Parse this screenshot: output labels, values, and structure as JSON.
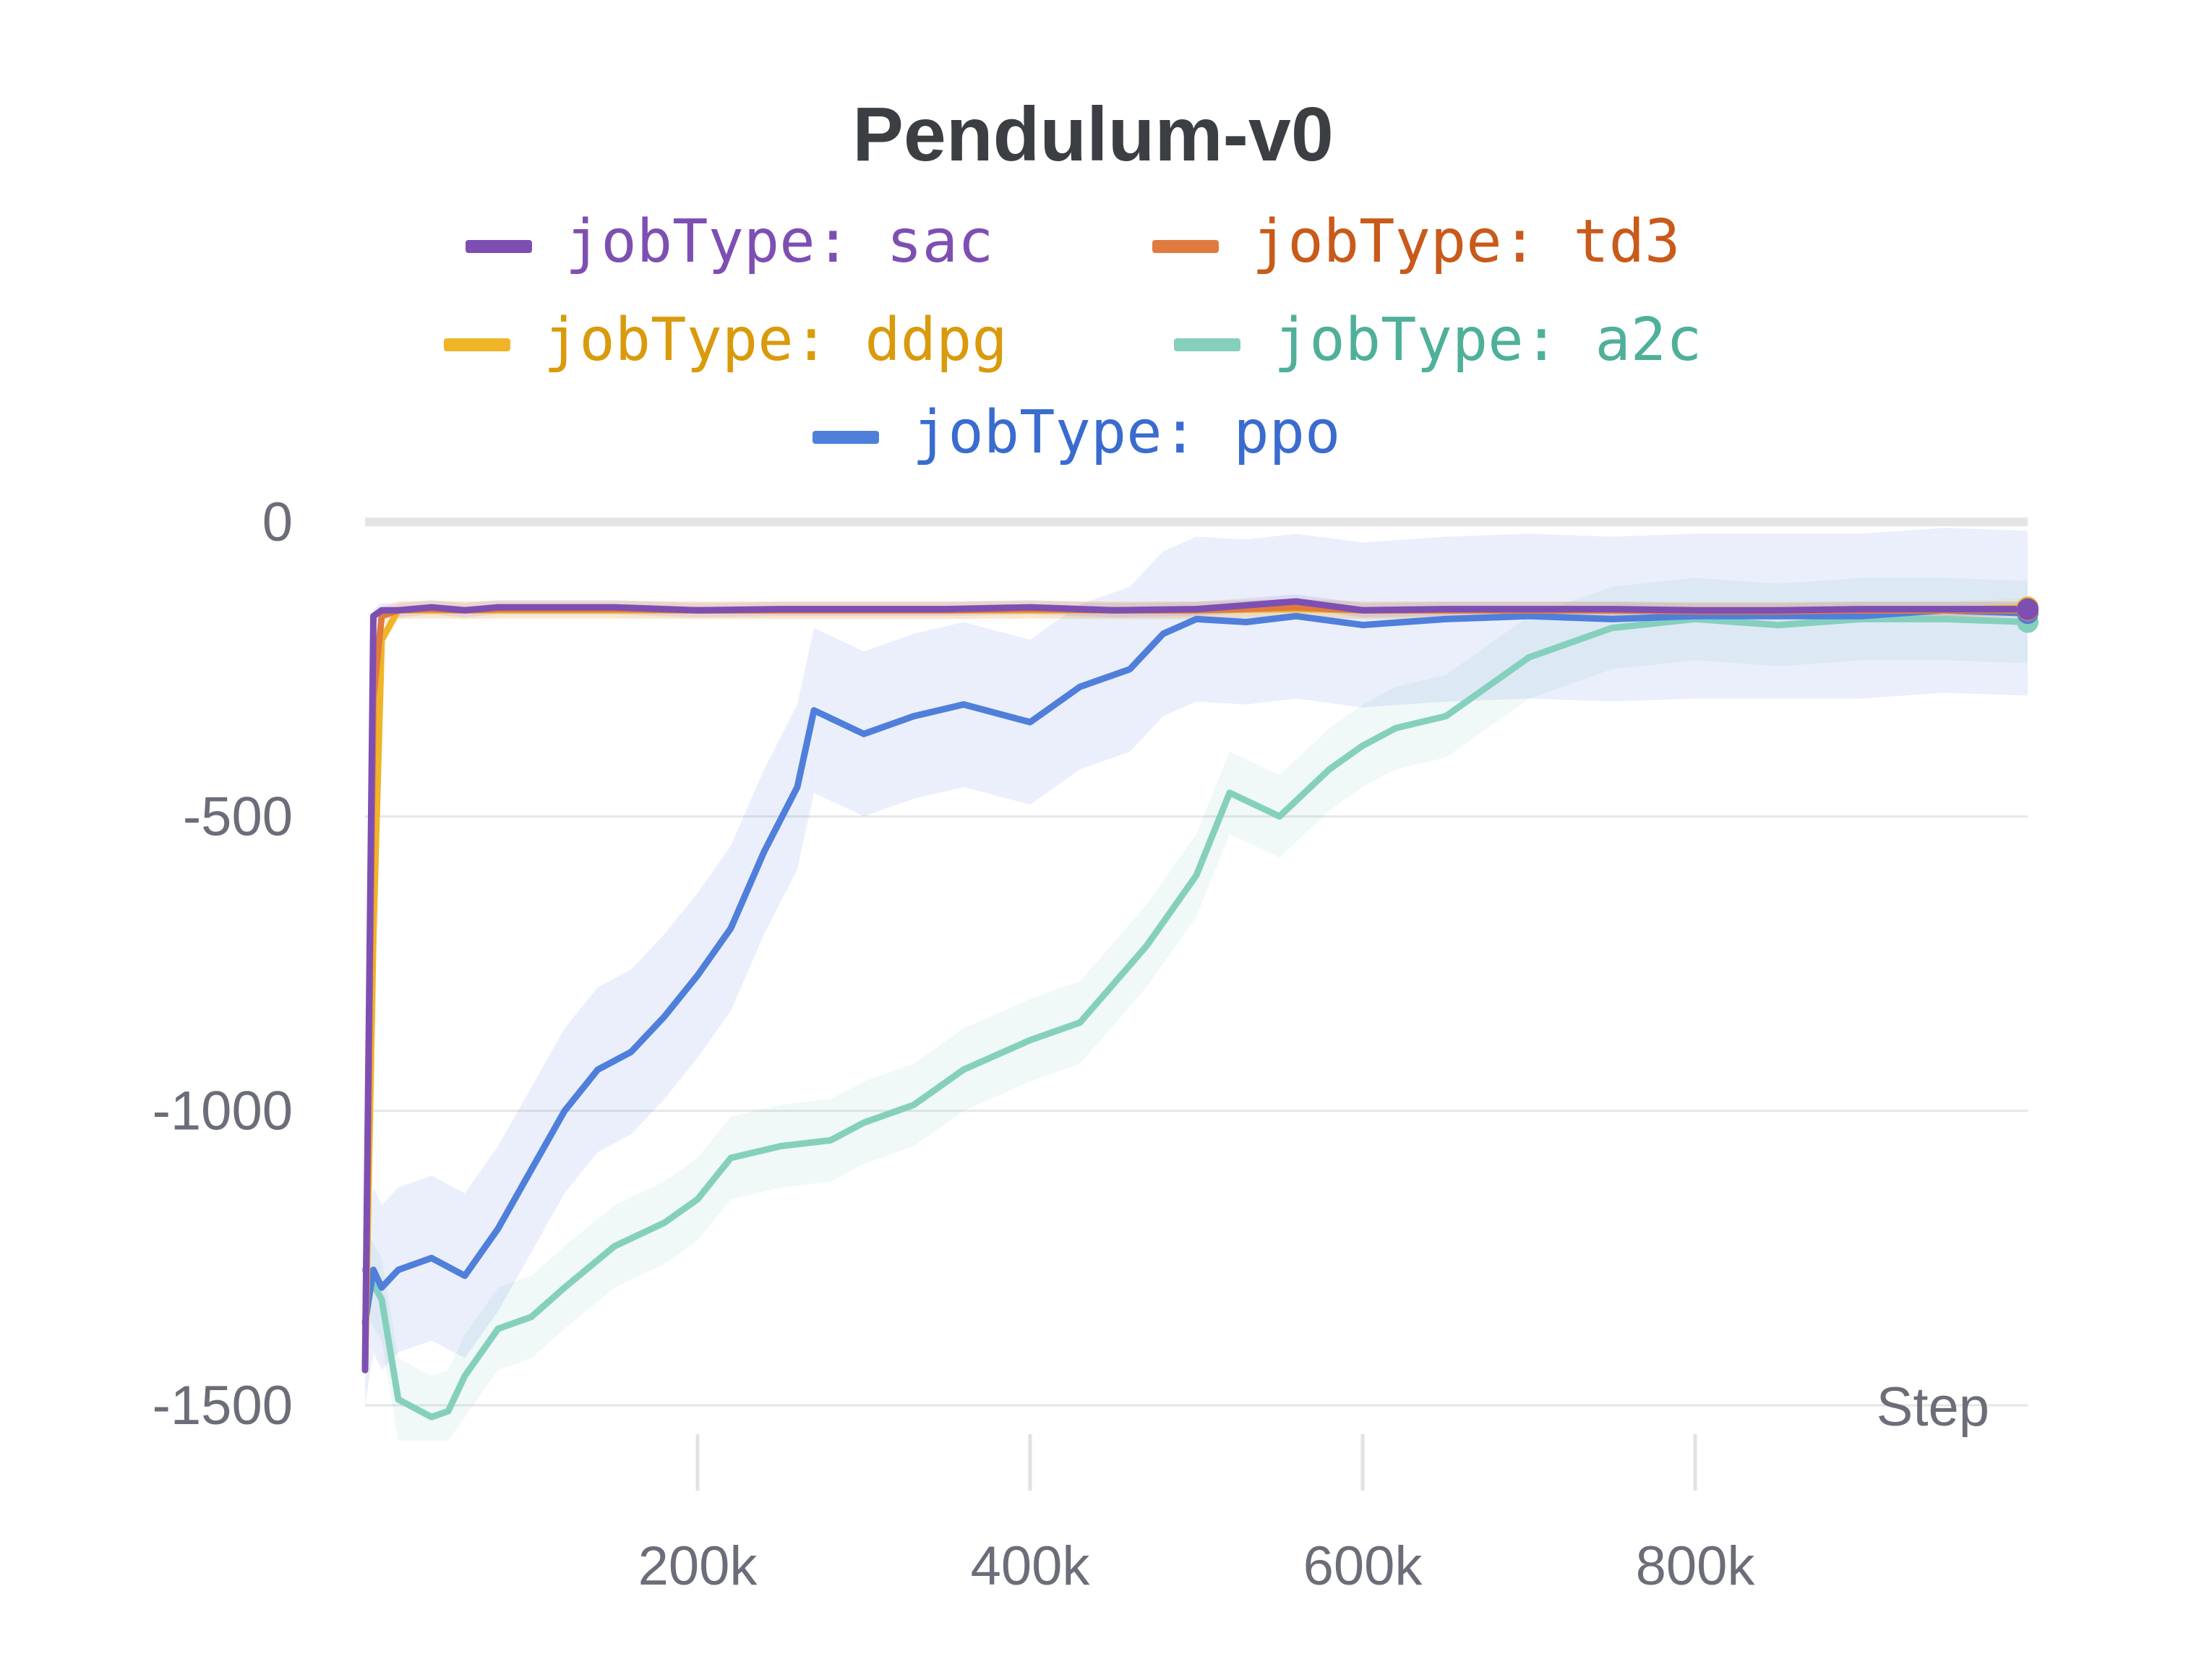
{
  "chart_data": {
    "type": "line",
    "title": "Pendulum-v0",
    "xlabel": "Step",
    "ylabel": "",
    "xlim": [
      0,
      1000000
    ],
    "ylim": [
      -1500,
      0
    ],
    "x_ticks": [
      {
        "value": 200000,
        "label": "200k"
      },
      {
        "value": 400000,
        "label": "400k"
      },
      {
        "value": 600000,
        "label": "600k"
      },
      {
        "value": 800000,
        "label": "800k"
      }
    ],
    "y_ticks": [
      {
        "value": 0,
        "label": "0"
      },
      {
        "value": -500,
        "label": "-500"
      },
      {
        "value": -1000,
        "label": "-1000"
      },
      {
        "value": -1500,
        "label": "-1500"
      }
    ],
    "grid": "horizontal",
    "legend_position": "top",
    "series": [
      {
        "name": "jobType: sac",
        "color": "#7e4fb3",
        "text_color": "#7e4fb3",
        "band": 12,
        "x": [
          0,
          5000,
          10000,
          20000,
          40000,
          60000,
          80000,
          100000,
          150000,
          200000,
          250000,
          300000,
          350000,
          400000,
          450000,
          500000,
          560000,
          600000,
          650000,
          700000,
          750000,
          800000,
          850000,
          900000,
          950000,
          1000000
        ],
        "y": [
          -1440,
          -160,
          -150,
          -150,
          -145,
          -150,
          -145,
          -145,
          -145,
          -150,
          -148,
          -148,
          -148,
          -145,
          -150,
          -148,
          -135,
          -150,
          -148,
          -148,
          -148,
          -150,
          -150,
          -148,
          -148,
          -148
        ]
      },
      {
        "name": "jobType: td3",
        "color": "#e07b3e",
        "text_color": "#c85a1a",
        "band": 15,
        "x": [
          0,
          5000,
          10000,
          20000,
          40000,
          60000,
          80000,
          100000,
          150000,
          200000,
          250000,
          300000,
          350000,
          400000,
          450000,
          500000,
          560000,
          600000,
          650000,
          700000,
          750000,
          800000,
          850000,
          900000,
          950000,
          1000000
        ],
        "y": [
          -1440,
          -300,
          -160,
          -150,
          -148,
          -150,
          -148,
          -148,
          -148,
          -150,
          -150,
          -150,
          -150,
          -148,
          -150,
          -150,
          -145,
          -150,
          -150,
          -150,
          -150,
          -152,
          -152,
          -150,
          -150,
          -150
        ]
      },
      {
        "name": "jobType: ddpg",
        "color": "#f0b429",
        "text_color": "#d99a0c",
        "band": 15,
        "x": [
          0,
          5000,
          10000,
          20000,
          40000,
          60000,
          80000,
          100000,
          150000,
          200000,
          250000,
          300000,
          350000,
          400000,
          450000,
          500000,
          560000,
          600000,
          650000,
          700000,
          750000,
          800000,
          850000,
          900000,
          950000,
          1000000
        ],
        "y": [
          -1440,
          -700,
          -200,
          -150,
          -150,
          -150,
          -150,
          -150,
          -150,
          -150,
          -150,
          -150,
          -150,
          -150,
          -150,
          -150,
          -148,
          -150,
          -150,
          -150,
          -150,
          -150,
          -150,
          -150,
          -150,
          -145
        ]
      },
      {
        "name": "jobType: a2c",
        "color": "#85d0bd",
        "text_color": "#4fb09a",
        "band": 70,
        "x": [
          0,
          10000,
          20000,
          40000,
          50000,
          60000,
          80000,
          100000,
          120000,
          150000,
          180000,
          200000,
          220000,
          250000,
          280000,
          300000,
          330000,
          360000,
          400000,
          430000,
          470000,
          500000,
          520000,
          550000,
          580000,
          600000,
          620000,
          650000,
          700000,
          750000,
          800000,
          850000,
          900000,
          950000,
          1000000
        ],
        "y": [
          -1270,
          -1320,
          -1490,
          -1520,
          -1510,
          -1450,
          -1370,
          -1350,
          -1300,
          -1230,
          -1190,
          -1150,
          -1080,
          -1060,
          -1050,
          -1020,
          -990,
          -930,
          -880,
          -850,
          -720,
          -600,
          -460,
          -500,
          -420,
          -380,
          -350,
          -330,
          -230,
          -180,
          -165,
          -175,
          -165,
          -165,
          -170
        ]
      },
      {
        "name": "jobType: ppo",
        "color": "#4f7fdb",
        "text_color": "#3a6ccf",
        "band": 140,
        "x": [
          0,
          5000,
          10000,
          20000,
          40000,
          60000,
          80000,
          100000,
          120000,
          140000,
          160000,
          180000,
          200000,
          220000,
          240000,
          260000,
          270000,
          300000,
          330000,
          360000,
          400000,
          430000,
          460000,
          480000,
          500000,
          530000,
          560000,
          600000,
          650000,
          700000,
          750000,
          800000,
          850000,
          900000,
          950000,
          1000000
        ],
        "y": [
          -1360,
          -1270,
          -1300,
          -1270,
          -1250,
          -1280,
          -1200,
          -1100,
          -1000,
          -930,
          -900,
          -840,
          -770,
          -690,
          -560,
          -450,
          -320,
          -360,
          -330,
          -310,
          -340,
          -280,
          -250,
          -190,
          -165,
          -170,
          -160,
          -175,
          -165,
          -160,
          -165,
          -160,
          -160,
          -160,
          -150,
          -155
        ]
      }
    ]
  }
}
